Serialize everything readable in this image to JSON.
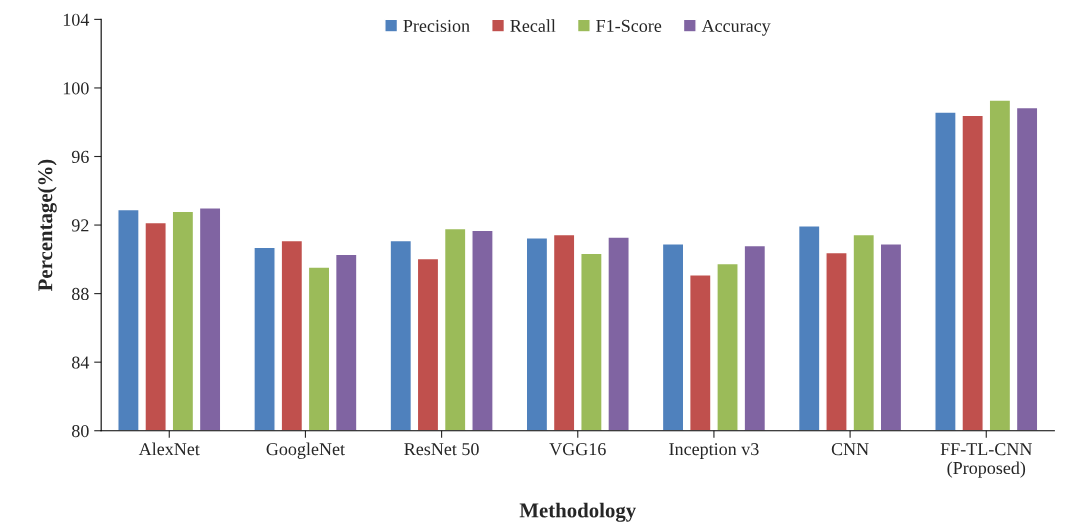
{
  "chart_data": {
    "type": "bar",
    "xlabel": "Methodology",
    "ylabel": "Percentage(%)",
    "categories": [
      "AlexNet",
      "GoogleNet",
      "ResNet 50",
      "VGG16",
      "Inception v3",
      "CNN",
      "FF-TL-CNN\n(Proposed)"
    ],
    "series": [
      {
        "name": "Precision",
        "color": "#4f81bd",
        "values": [
          92.9,
          90.7,
          91.1,
          91.25,
          90.9,
          91.95,
          98.6
        ]
      },
      {
        "name": "Recall",
        "color": "#c0504d",
        "values": [
          92.15,
          91.1,
          90.05,
          91.45,
          89.1,
          90.4,
          98.4
        ]
      },
      {
        "name": "F1-Score",
        "color": "#9bbb59",
        "values": [
          92.8,
          89.55,
          91.8,
          90.35,
          89.75,
          91.45,
          99.3
        ]
      },
      {
        "name": "Accuracy",
        "color": "#8064a2",
        "values": [
          93.0,
          90.3,
          91.7,
          91.3,
          90.8,
          90.9,
          98.85
        ]
      }
    ],
    "ylim": [
      80,
      104
    ],
    "yticks": [
      80,
      84,
      88,
      92,
      96,
      100,
      104
    ],
    "grid": false,
    "legend": "top"
  }
}
